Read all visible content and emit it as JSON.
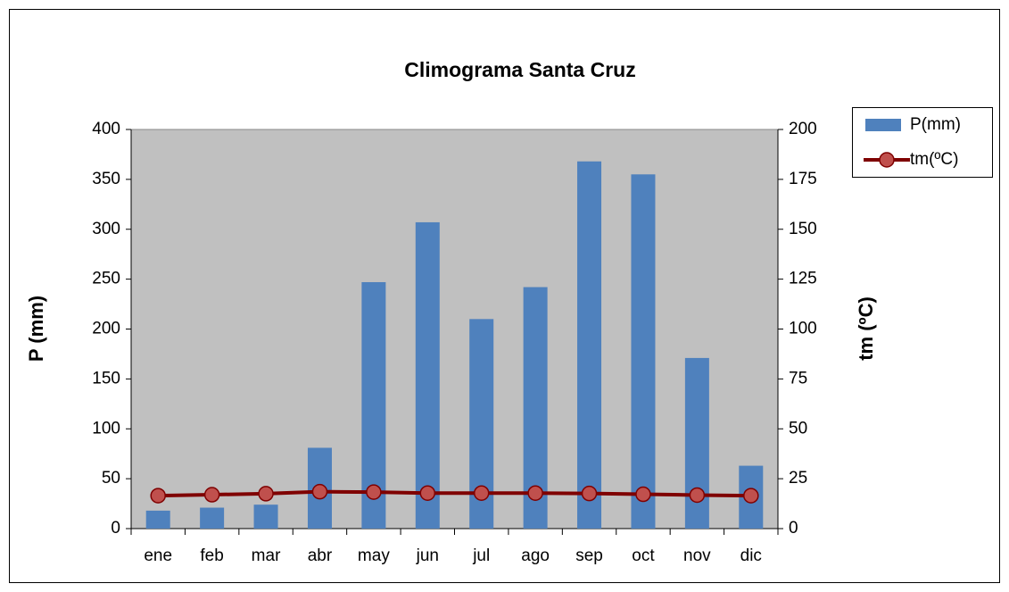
{
  "chart_data": {
    "type": "bar_line",
    "title": "Climograma Santa Cruz",
    "y_label": "P (mm)",
    "y2_label": "tm (ºC)",
    "categories": [
      "ene",
      "feb",
      "mar",
      "abr",
      "may",
      "jun",
      "jul",
      "ago",
      "sep",
      "oct",
      "nov",
      "dic"
    ],
    "series": [
      {
        "name": "P(mm)",
        "type": "bar",
        "color": "#4f81bd",
        "values": [
          18,
          21,
          24,
          81,
          247,
          307,
          210,
          242,
          368,
          355,
          171,
          63
        ]
      },
      {
        "name": "tm(ºC)",
        "type": "line",
        "axis": "y2",
        "color": "#7f0000",
        "marker_color": "#c0504d",
        "values": [
          16.5,
          17,
          17.5,
          18.5,
          18.3,
          17.8,
          17.8,
          17.8,
          17.6,
          17.2,
          16.8,
          16.5
        ]
      }
    ],
    "ylim": [
      0,
      400
    ],
    "yticks": [
      0,
      50,
      100,
      150,
      200,
      250,
      300,
      350,
      400
    ],
    "y2lim": [
      0,
      200
    ],
    "y2ticks": [
      0,
      25,
      50,
      75,
      100,
      125,
      150,
      175,
      200
    ],
    "plot_background": "#c0c0c0",
    "legend": "right"
  }
}
